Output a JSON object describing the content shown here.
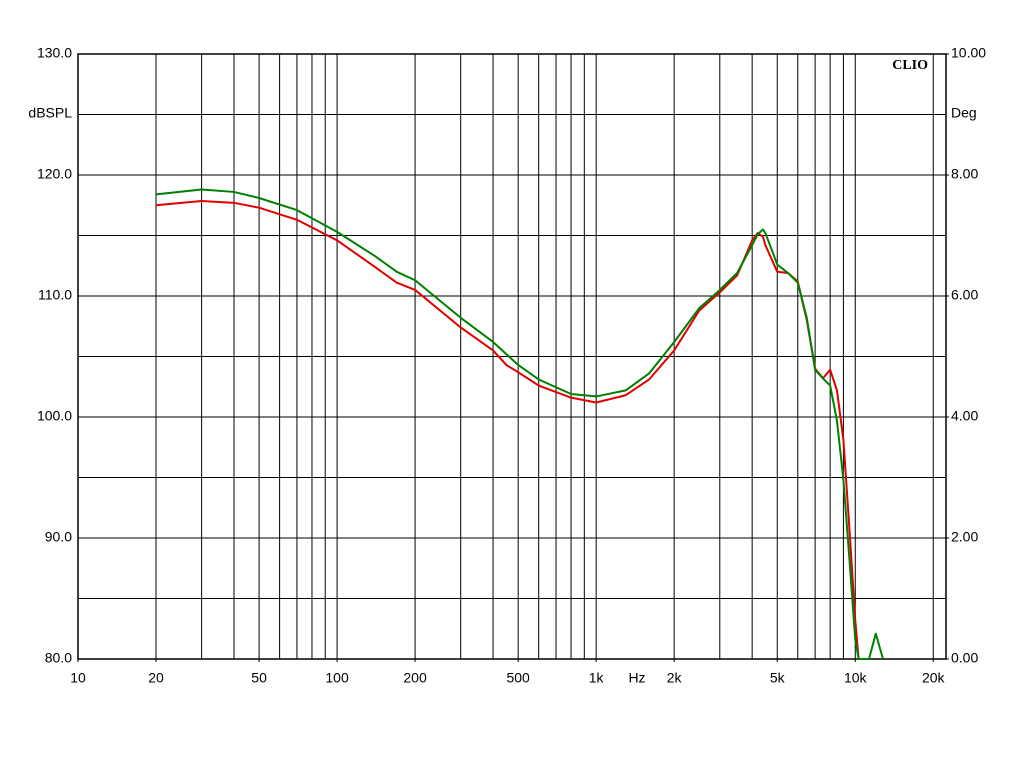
{
  "chart_data": {
    "type": "line",
    "annotation": "CLIO",
    "ylabel": "dBSPL",
    "y2label": "Deg",
    "xlabel": "Hz",
    "xscale": "log",
    "grid": true,
    "xlim": [
      10,
      22400
    ],
    "xticks": [
      10,
      20,
      50,
      100,
      200,
      500,
      {
        "value": 1000,
        "label": "1k"
      },
      {
        "value": 2000,
        "label": "2k"
      },
      {
        "value": 5000,
        "label": "5k"
      },
      {
        "value": 10000,
        "label": "10k"
      },
      {
        "value": 20000,
        "label": "20k"
      }
    ],
    "xgrid": [
      20,
      30,
      40,
      50,
      60,
      70,
      80,
      90,
      100,
      200,
      300,
      400,
      500,
      600,
      700,
      800,
      900,
      1000,
      2000,
      3000,
      4000,
      5000,
      6000,
      7000,
      8000,
      9000,
      10000,
      20000
    ],
    "ylim": [
      80,
      130
    ],
    "yticks": [
      {
        "value": 80,
        "label": "80.0"
      },
      {
        "value": 90,
        "label": "90.0"
      },
      {
        "value": 100,
        "label": "100.0"
      },
      {
        "value": 110,
        "label": "110.0"
      },
      {
        "value": 120,
        "label": "120.0"
      },
      {
        "value": 130,
        "label": "130.0"
      }
    ],
    "ygrid": [
      85,
      95,
      105,
      115,
      125
    ],
    "y2lim": [
      0,
      10
    ],
    "y2ticks": [
      {
        "value": 0,
        "label": "0.00"
      },
      {
        "value": 2,
        "label": "2.00"
      },
      {
        "value": 4,
        "label": "4.00"
      },
      {
        "value": 6,
        "label": "6.00"
      },
      {
        "value": 8,
        "label": "8.00"
      },
      {
        "value": 10,
        "label": "10.00"
      }
    ],
    "x": [
      20,
      30,
      40,
      50,
      70,
      100,
      140,
      170,
      200,
      300,
      400,
      450,
      500,
      600,
      800,
      1000,
      1300,
      1600,
      2000,
      2500,
      3000,
      3500,
      4000,
      4200,
      4400,
      4500,
      5000,
      5500,
      6000,
      6500,
      7000,
      7500,
      8000,
      8500,
      9000,
      9500,
      10000,
      10300,
      11300,
      12000,
      12800
    ],
    "series": [
      {
        "color": "#e00000",
        "values": [
          117.5,
          117.85,
          117.7,
          117.3,
          116.3,
          114.6,
          112.4,
          111.1,
          110.5,
          107.4,
          105.5,
          104.3,
          103.7,
          102.6,
          101.6,
          101.2,
          101.8,
          103.1,
          105.5,
          108.8,
          110.3,
          111.7,
          114.6,
          115.2,
          114.9,
          114.2,
          112.0,
          111.9,
          111.2,
          108.0,
          104.0,
          103.2,
          103.9,
          102.2,
          98.1,
          90.7,
          83.2,
          80.0,
          null,
          null,
          null
        ]
      },
      {
        "color": "#008000",
        "values": [
          118.4,
          118.8,
          118.6,
          118.1,
          117.1,
          115.3,
          113.3,
          112.0,
          111.3,
          108.2,
          106.2,
          105.2,
          104.3,
          103.1,
          101.9,
          101.7,
          102.2,
          103.6,
          106.2,
          109.0,
          110.5,
          111.9,
          114.2,
          115.1,
          115.5,
          115.2,
          112.6,
          111.9,
          111.1,
          108.2,
          103.9,
          103.2,
          102.6,
          99.7,
          94.8,
          88.2,
          81.6,
          80.0,
          80.0,
          82.1,
          80.0
        ]
      }
    ]
  }
}
